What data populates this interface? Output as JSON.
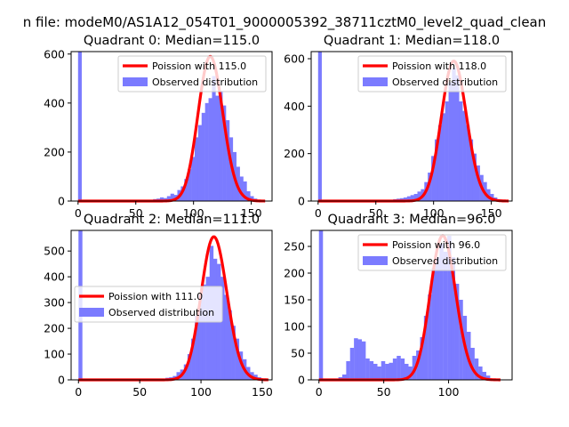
{
  "figure": {
    "suptitle": "n file: modeM0/AS1A12_054T01_9000005392_38711cztM0_level2_quad_clean"
  },
  "colors": {
    "poisson_line": "#ff0000",
    "histogram": "#7b7bff"
  },
  "chart_data": [
    {
      "type": "bar",
      "title": "Quadrant 0: Median=115.0",
      "xlim": [
        -6,
        168
      ],
      "ylim": [
        0,
        610
      ],
      "xticks": [
        0,
        50,
        100,
        150
      ],
      "yticks": [
        0,
        200,
        400,
        600
      ],
      "legend": {
        "placement": "top-right",
        "labels": [
          "Poission with 115.0",
          "Observed distribution"
        ]
      },
      "poisson_mean": 115.0,
      "poisson_peak": 590,
      "poisson_range": [
        0,
        162
      ],
      "histogram": {
        "bin_width": 3.2,
        "bins": [
          [
            0,
            610
          ],
          [
            59,
            5
          ],
          [
            62,
            5
          ],
          [
            65,
            8
          ],
          [
            68,
            10
          ],
          [
            71,
            15
          ],
          [
            74,
            12
          ],
          [
            77,
            20
          ],
          [
            80,
            30
          ],
          [
            83,
            25
          ],
          [
            86,
            45
          ],
          [
            89,
            60
          ],
          [
            92,
            90
          ],
          [
            95,
            130
          ],
          [
            98,
            180
          ],
          [
            101,
            260
          ],
          [
            104,
            310
          ],
          [
            107,
            360
          ],
          [
            110,
            400
          ],
          [
            113,
            420
          ],
          [
            116,
            510
          ],
          [
            119,
            430
          ],
          [
            122,
            450
          ],
          [
            125,
            390
          ],
          [
            128,
            330
          ],
          [
            131,
            260
          ],
          [
            134,
            200
          ],
          [
            137,
            140
          ],
          [
            140,
            100
          ],
          [
            143,
            80
          ],
          [
            146,
            40
          ],
          [
            149,
            20
          ],
          [
            152,
            10
          ],
          [
            155,
            5
          ],
          [
            158,
            5
          ]
        ]
      }
    },
    {
      "type": "bar",
      "title": "Quadrant 1: Median=118.0",
      "xlim": [
        -6,
        168
      ],
      "ylim": [
        0,
        630
      ],
      "xticks": [
        0,
        50,
        100,
        150
      ],
      "yticks": [
        0,
        200,
        400,
        600
      ],
      "legend": {
        "placement": "top-right",
        "labels": [
          "Poission with 118.0",
          "Observed distribution"
        ]
      },
      "poisson_mean": 118.0,
      "poisson_peak": 590,
      "poisson_range": [
        0,
        165
      ],
      "histogram": {
        "bin_width": 3.2,
        "bins": [
          [
            0,
            630
          ],
          [
            62,
            5
          ],
          [
            65,
            8
          ],
          [
            68,
            10
          ],
          [
            71,
            12
          ],
          [
            74,
            15
          ],
          [
            77,
            20
          ],
          [
            80,
            25
          ],
          [
            83,
            30
          ],
          [
            86,
            40
          ],
          [
            89,
            50
          ],
          [
            92,
            80
          ],
          [
            95,
            120
          ],
          [
            98,
            190
          ],
          [
            101,
            260
          ],
          [
            104,
            320
          ],
          [
            107,
            370
          ],
          [
            110,
            420
          ],
          [
            113,
            500
          ],
          [
            116,
            560
          ],
          [
            119,
            530
          ],
          [
            122,
            420
          ],
          [
            125,
            380
          ],
          [
            128,
            320
          ],
          [
            131,
            260
          ],
          [
            134,
            200
          ],
          [
            137,
            150
          ],
          [
            140,
            110
          ],
          [
            143,
            80
          ],
          [
            146,
            50
          ],
          [
            149,
            30
          ],
          [
            152,
            15
          ],
          [
            155,
            8
          ],
          [
            158,
            5
          ]
        ]
      }
    },
    {
      "type": "bar",
      "title": "Quadrant 2: Median=111.0",
      "xlim": [
        -6,
        158
      ],
      "ylim": [
        0,
        580
      ],
      "xticks": [
        0,
        50,
        100,
        150
      ],
      "yticks": [
        0,
        100,
        200,
        300,
        400,
        500
      ],
      "legend": {
        "placement": "center-left",
        "labels": [
          "Poission with 111.0",
          "Observed distribution"
        ]
      },
      "poisson_mean": 111.0,
      "poisson_peak": 555,
      "poisson_range": [
        0,
        155
      ],
      "histogram": {
        "bin_width": 3.2,
        "bins": [
          [
            0,
            580
          ],
          [
            68,
            5
          ],
          [
            71,
            8
          ],
          [
            74,
            10
          ],
          [
            77,
            15
          ],
          [
            80,
            30
          ],
          [
            83,
            40
          ],
          [
            86,
            60
          ],
          [
            89,
            100
          ],
          [
            92,
            160
          ],
          [
            95,
            250
          ],
          [
            98,
            330
          ],
          [
            101,
            370
          ],
          [
            104,
            400
          ],
          [
            107,
            520
          ],
          [
            110,
            470
          ],
          [
            113,
            450
          ],
          [
            116,
            400
          ],
          [
            119,
            330
          ],
          [
            122,
            270
          ],
          [
            125,
            210
          ],
          [
            128,
            160
          ],
          [
            131,
            110
          ],
          [
            134,
            80
          ],
          [
            137,
            50
          ],
          [
            140,
            30
          ],
          [
            143,
            20
          ],
          [
            146,
            10
          ],
          [
            149,
            5
          ]
        ]
      }
    },
    {
      "type": "bar",
      "title": "Quadrant 3: Median=96.0",
      "xlim": [
        -6,
        149
      ],
      "ylim": [
        0,
        280
      ],
      "xticks": [
        0,
        50,
        100
      ],
      "yticks": [
        0,
        50,
        100,
        150,
        200,
        250
      ],
      "legend": {
        "placement": "top-right",
        "labels": [
          "Poission with 96.0",
          "Observed distribution"
        ]
      },
      "poisson_mean": 96.0,
      "poisson_peak": 270,
      "poisson_range": [
        0,
        140
      ],
      "histogram": {
        "bin_width": 3.1,
        "bins": [
          [
            0,
            280
          ],
          [
            15,
            5
          ],
          [
            18,
            10
          ],
          [
            21,
            35
          ],
          [
            24,
            60
          ],
          [
            27,
            78
          ],
          [
            30,
            76
          ],
          [
            33,
            72
          ],
          [
            36,
            40
          ],
          [
            39,
            35
          ],
          [
            42,
            30
          ],
          [
            45,
            25
          ],
          [
            48,
            35
          ],
          [
            51,
            30
          ],
          [
            54,
            32
          ],
          [
            57,
            40
          ],
          [
            60,
            45
          ],
          [
            63,
            40
          ],
          [
            66,
            30
          ],
          [
            69,
            25
          ],
          [
            72,
            45
          ],
          [
            75,
            55
          ],
          [
            78,
            80
          ],
          [
            81,
            120
          ],
          [
            84,
            160
          ],
          [
            87,
            210
          ],
          [
            90,
            230
          ],
          [
            93,
            255
          ],
          [
            96,
            240
          ],
          [
            99,
            270
          ],
          [
            102,
            230
          ],
          [
            105,
            180
          ],
          [
            108,
            150
          ],
          [
            111,
            120
          ],
          [
            114,
            90
          ],
          [
            117,
            60
          ],
          [
            120,
            40
          ],
          [
            123,
            25
          ],
          [
            126,
            15
          ],
          [
            129,
            8
          ]
        ]
      }
    }
  ]
}
